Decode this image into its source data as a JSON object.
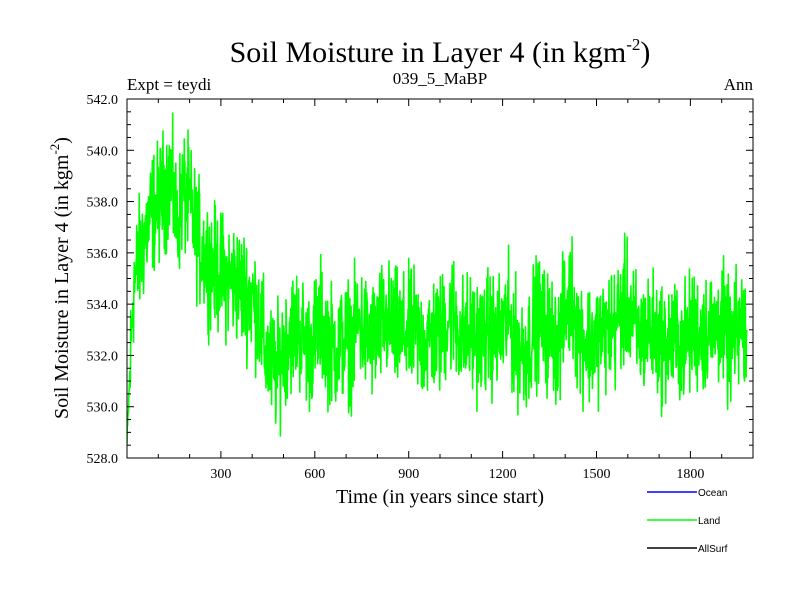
{
  "chart_data": {
    "type": "line",
    "title": "Soil Moisture in Layer 4 (in kgm",
    "title_superscript": "-2",
    "title_close": ")",
    "subtitle_left": "Expt = teydi",
    "subtitle_center": "039_5_MaBP",
    "subtitle_right": "Ann",
    "xlabel": "Time (in years since start)",
    "ylabel": "Soil Moisture in Layer 4 (in kgm",
    "ylabel_superscript": "-2",
    "ylabel_close": ")",
    "xlim": [
      0,
      2000
    ],
    "ylim": [
      528.0,
      542.0
    ],
    "x_ticks": [
      300,
      600,
      900,
      1200,
      1500,
      1800
    ],
    "x_tick_labels": [
      "300",
      "600",
      "900",
      "1200",
      "1500",
      "1800"
    ],
    "y_ticks": [
      528,
      530,
      532,
      534,
      536,
      538,
      540,
      542
    ],
    "y_tick_labels": [
      "528.0",
      "530.0",
      "532.0",
      "534.0",
      "536.0",
      "538.0",
      "540.0",
      "542.0"
    ],
    "legend": [
      {
        "name": "Ocean",
        "color": "#0000ff"
      },
      {
        "name": "Land",
        "color": "#00ff00"
      },
      {
        "name": "AllSurf",
        "color": "#000000"
      }
    ],
    "legend_position": "bottom-right",
    "series": [
      {
        "name": "Land",
        "color": "#00ff00",
        "x_start": 0,
        "x_step": 20,
        "values": [
          528.5,
          534.6,
          535.8,
          536.8,
          537.6,
          537.9,
          538.5,
          538.9,
          537.1,
          538.4,
          537.9,
          536.8,
          536.1,
          535.7,
          535.4,
          535.2,
          535.0,
          534.9,
          534.7,
          534.5,
          534.2,
          533.7,
          532.2,
          531.6,
          531.4,
          532.3,
          532.9,
          533.1,
          532.8,
          532.2,
          532.7,
          533.4,
          532.6,
          532.3,
          532.4,
          532.6,
          532.5,
          533.4,
          532.8,
          532.6,
          532.8,
          533.3,
          533.2,
          532.9,
          532.8,
          532.9,
          533.0,
          532.5,
          532.6,
          532.8,
          532.7,
          533.4,
          533.7,
          533.0,
          532.7,
          532.9,
          532.7,
          532.7,
          533.0,
          532.6,
          533.1,
          533.4,
          532.5,
          532.2,
          532.2,
          533.3,
          533.4,
          532.9,
          532.8,
          532.4,
          533.7,
          534.4,
          532.9,
          532.7,
          532.4,
          532.7,
          532.8,
          533.0,
          533.1,
          533.8,
          534.0,
          533.0,
          532.7,
          533.0,
          532.9,
          532.6,
          532.4,
          532.6,
          532.6,
          532.4,
          532.9,
          533.0,
          532.9,
          533.0,
          533.1,
          533.4,
          532.4,
          532.6,
          533.2,
          532.6
        ]
      },
      {
        "name": "Ocean",
        "color": "#0000ff",
        "values": []
      },
      {
        "name": "AllSurf",
        "color": "#000000",
        "values": []
      }
    ]
  }
}
